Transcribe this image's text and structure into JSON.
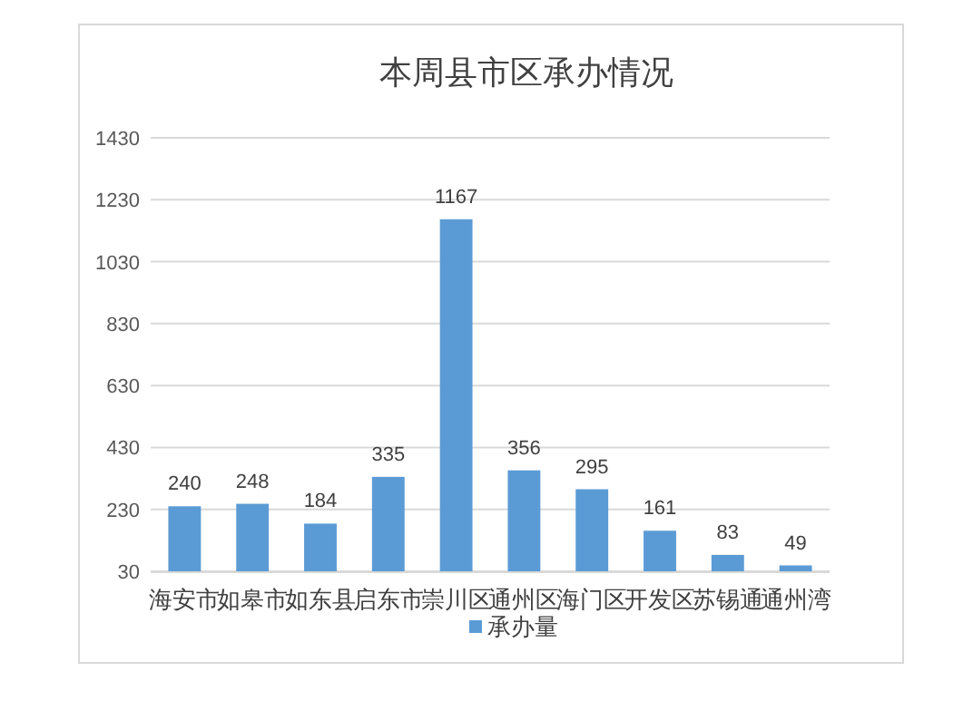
{
  "chart_data": {
    "type": "bar",
    "title": "本周县市区承办情况",
    "categories": [
      "海安市",
      "如皋市",
      "如东县",
      "启东市",
      "崇川区",
      "通州区",
      "海门区",
      "开发区",
      "苏锡通",
      "通州湾"
    ],
    "series": [
      {
        "name": "承办量",
        "color": "#5b9bd5",
        "values": [
          240,
          248,
          184,
          335,
          1167,
          356,
          295,
          161,
          83,
          49
        ]
      }
    ],
    "ylim": [
      30,
      1430
    ],
    "yticks": [
      30,
      230,
      430,
      630,
      830,
      1030,
      1230,
      1430
    ],
    "grid": "y",
    "legend": "bottom",
    "data_labels": true
  }
}
